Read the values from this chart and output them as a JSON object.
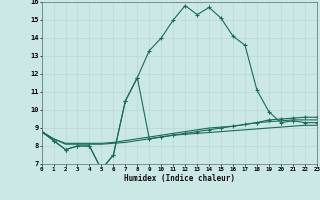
{
  "xlabel": "Humidex (Indice chaleur)",
  "bg_color": "#cce8e6",
  "grid_color": "#b8d8d5",
  "line_color": "#1a6b5a",
  "xlim": [
    0,
    23
  ],
  "ylim": [
    7,
    16
  ],
  "xticks": [
    0,
    1,
    2,
    3,
    4,
    5,
    6,
    7,
    8,
    9,
    10,
    11,
    12,
    13,
    14,
    15,
    16,
    17,
    18,
    19,
    20,
    21,
    22,
    23
  ],
  "yticks": [
    7,
    8,
    9,
    10,
    11,
    12,
    13,
    14,
    15,
    16
  ],
  "series": [
    {
      "x": [
        0,
        1,
        2,
        3,
        4,
        5,
        6,
        7,
        8,
        9,
        10,
        11,
        12,
        13,
        14,
        15,
        16,
        17,
        18,
        19,
        20,
        21,
        22,
        23
      ],
      "y": [
        8.8,
        8.3,
        7.8,
        8.0,
        8.0,
        6.7,
        7.5,
        10.5,
        11.8,
        13.3,
        14.0,
        15.0,
        15.8,
        15.3,
        15.7,
        15.1,
        14.1,
        13.6,
        11.1,
        9.9,
        9.3,
        9.4,
        9.3,
        9.3
      ],
      "has_marker": true
    },
    {
      "x": [
        0,
        1,
        2,
        3,
        4,
        5,
        6,
        7,
        8,
        9,
        10,
        11,
        12,
        13,
        14,
        15,
        16,
        17,
        18,
        19,
        20,
        21,
        22,
        23
      ],
      "y": [
        8.8,
        8.3,
        7.8,
        8.0,
        8.0,
        6.7,
        7.5,
        10.5,
        11.8,
        8.4,
        8.5,
        8.6,
        8.7,
        8.8,
        8.9,
        9.0,
        9.1,
        9.2,
        9.3,
        9.45,
        9.5,
        9.55,
        9.6,
        9.6
      ],
      "has_marker": true
    },
    {
      "x": [
        0,
        1,
        2,
        3,
        4,
        5,
        6,
        7,
        8,
        9,
        10,
        11,
        12,
        13,
        14,
        15,
        16,
        17,
        18,
        19,
        20,
        21,
        22,
        23
      ],
      "y": [
        8.8,
        8.4,
        8.15,
        8.15,
        8.15,
        8.15,
        8.2,
        8.3,
        8.4,
        8.5,
        8.6,
        8.7,
        8.8,
        8.9,
        9.0,
        9.05,
        9.1,
        9.2,
        9.3,
        9.35,
        9.4,
        9.45,
        9.45,
        9.45
      ],
      "has_marker": false
    },
    {
      "x": [
        0,
        1,
        2,
        3,
        4,
        5,
        6,
        7,
        8,
        9,
        10,
        11,
        12,
        13,
        14,
        15,
        16,
        17,
        18,
        19,
        20,
        21,
        22,
        23
      ],
      "y": [
        8.8,
        8.4,
        8.1,
        8.1,
        8.1,
        8.1,
        8.15,
        8.2,
        8.3,
        8.4,
        8.5,
        8.6,
        8.65,
        8.7,
        8.75,
        8.8,
        8.85,
        8.9,
        8.95,
        9.0,
        9.05,
        9.1,
        9.15,
        9.15
      ],
      "has_marker": false
    }
  ]
}
